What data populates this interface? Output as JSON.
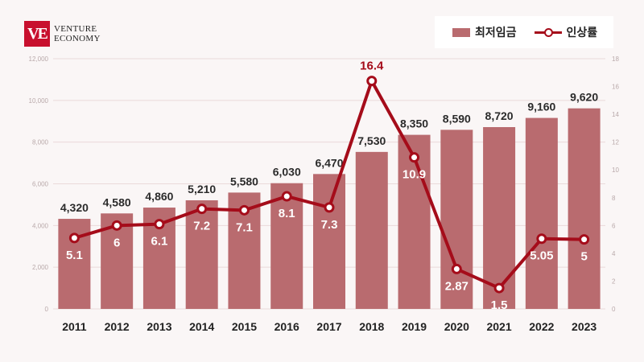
{
  "brand": {
    "mark": "VE",
    "line1": "VENTURE",
    "line2": "ECONOMY"
  },
  "colors": {
    "bar": "#b96b6f",
    "line": "#a50c1a",
    "background": "#faf6f6"
  },
  "chart_data": {
    "type": "bar",
    "categories": [
      "2011",
      "2012",
      "2013",
      "2014",
      "2015",
      "2016",
      "2017",
      "2018",
      "2019",
      "2020",
      "2021",
      "2022",
      "2023"
    ],
    "series": [
      {
        "name": "최저임금",
        "type": "bar",
        "axis": "left",
        "values": [
          4320,
          4580,
          4860,
          5210,
          5580,
          6030,
          6470,
          7530,
          8350,
          8590,
          8720,
          9160,
          9620
        ],
        "labels": [
          "4,320",
          "4,580",
          "4,860",
          "5,210",
          "5,580",
          "6,030",
          "6,470",
          "7,530",
          "8,350",
          "8,590",
          "8,720",
          "9,160",
          "9,620"
        ]
      },
      {
        "name": "인상률",
        "type": "line",
        "axis": "right",
        "values": [
          5.1,
          6,
          6.1,
          7.2,
          7.1,
          8.1,
          7.3,
          16.4,
          10.9,
          2.87,
          1.5,
          5.05,
          5
        ],
        "labels": [
          "5.1",
          "6",
          "6.1",
          "7.2",
          "7.1",
          "8.1",
          "7.3",
          "16.4",
          "10.9",
          "2.87",
          "1.5",
          "5.05",
          "5"
        ]
      }
    ],
    "ylim": [
      0,
      12000
    ],
    "yticks": [
      0,
      2000,
      4000,
      6000,
      8000,
      10000,
      12000
    ],
    "ytick_labels": [
      "0",
      "2,000",
      "4,000",
      "6,000",
      "8,000",
      "10,000",
      "12,000"
    ],
    "y2lim": [
      0,
      18
    ],
    "y2ticks": [
      0,
      2,
      4,
      6,
      8,
      10,
      12,
      14,
      16,
      18
    ],
    "y2tick_labels": [
      "0",
      "2",
      "4",
      "6",
      "8",
      "10",
      "12",
      "14",
      "16",
      "18"
    ],
    "grid": true,
    "legend": "top-right"
  }
}
